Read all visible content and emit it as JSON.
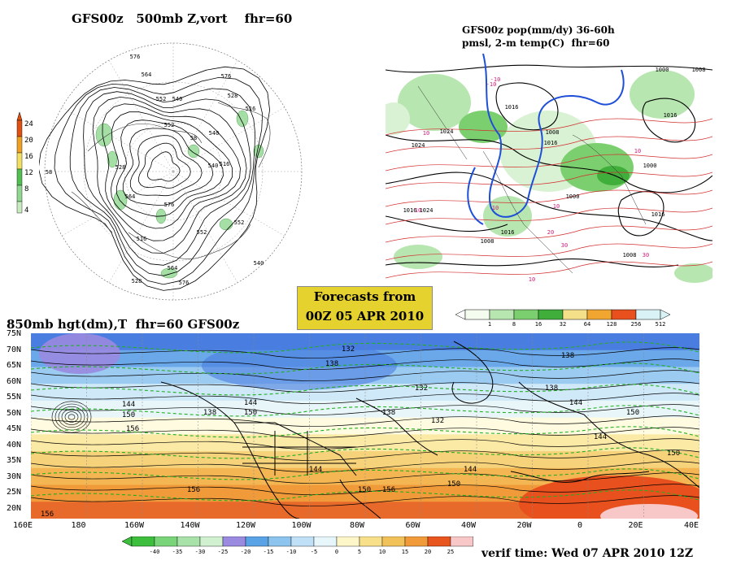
{
  "top_left": {
    "title": "GFS00z   500mb Z,vort    fhr=60",
    "colorbar_ticks": [
      "24",
      "20",
      "16",
      "12",
      "8",
      "4"
    ],
    "colorbar_colors": [
      "#e05010",
      "#f0a020",
      "#f4e060",
      "#50c050",
      "#90d890",
      "#c8ecc0"
    ],
    "contour_labels": [
      "576",
      "564",
      "576",
      "552",
      "540",
      "528",
      "516",
      "552",
      "58",
      "540",
      "516",
      "528",
      "564",
      "576",
      "552",
      "540",
      "528",
      "576",
      "564",
      "552",
      "540",
      "516",
      "58"
    ]
  },
  "top_right": {
    "title_line1": "GFS00z pop(mm/dy) 36-60h",
    "title_line2": "pmsl, 2-m temp(C)  fhr=60",
    "colorbar_ticks": [
      "1",
      "8",
      "16",
      "32",
      "64",
      "128",
      "256",
      "512"
    ],
    "colorbar_colors": [
      "#f4fbef",
      "#b8e6b0",
      "#7ccf6e",
      "#3fae3b",
      "#f5e08a",
      "#f2a632",
      "#e8501e",
      "#d8f2f6"
    ],
    "contour_labels": [
      "1000",
      "1008",
      "1016",
      "1024",
      "1008",
      "1016",
      "1000",
      "1016",
      "1024",
      "1016",
      "1008",
      "1016",
      "1000",
      "1016",
      "1024",
      "1008"
    ],
    "temp_labels": [
      "-10",
      "-10",
      "10",
      "10",
      "10",
      "10",
      "10",
      "20",
      "30",
      "30",
      "10"
    ]
  },
  "forecast_box": {
    "line1": "Forecasts from",
    "line2": "00Z 05 APR 2010"
  },
  "bottom": {
    "title": "850mb hgt(dm),T  fhr=60 GFS00z",
    "lat_labels": [
      "75N",
      "70N",
      "65N",
      "60N",
      "55N",
      "50N",
      "45N",
      "40N",
      "35N",
      "30N",
      "25N",
      "20N"
    ],
    "lon_labels": [
      "160E",
      "180",
      "160W",
      "140W",
      "120W",
      "100W",
      "80W",
      "60W",
      "40W",
      "20W",
      "0",
      "20E",
      "40E"
    ],
    "contour_labels": [
      "132",
      "138",
      "138",
      "144",
      "150",
      "156",
      "138",
      "144",
      "150",
      "156",
      "138",
      "132",
      "144",
      "150",
      "156",
      "150",
      "144",
      "132",
      "138",
      "144",
      "150",
      "144",
      "150",
      "156"
    ],
    "colorbar_ticks": [
      "-40",
      "-35",
      "-30",
      "-25",
      "-20",
      "-15",
      "-10",
      "-5",
      "0",
      "5",
      "10",
      "15",
      "20",
      "25"
    ],
    "colorbar_colors": [
      "#3dbf3d",
      "#7ad47a",
      "#a8e2a8",
      "#d0f0d0",
      "#9a8ae0",
      "#5aa2e6",
      "#8cc4ee",
      "#bfe0f6",
      "#e6f6fb",
      "#fdf6c8",
      "#f8e08a",
      "#f2c25a",
      "#f09a3a",
      "#e8551e",
      "#f8c8c8"
    ]
  },
  "verif_time": "verif time: Wed 07 APR 2010 12Z"
}
